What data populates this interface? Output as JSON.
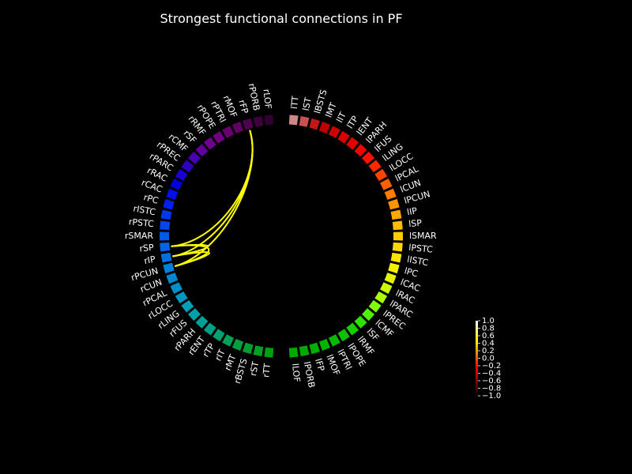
{
  "title": "Strongest functional connections in PF",
  "colors": {
    "background": "#000000",
    "edge": "#ffff00",
    "label": "#ffffff"
  },
  "nodes": [
    {
      "label": "lTT",
      "color": "#cc8888"
    },
    {
      "label": "lST",
      "color": "#c85050"
    },
    {
      "label": "lBSTS",
      "color": "#c01818"
    },
    {
      "label": "lMT",
      "color": "#c00000"
    },
    {
      "label": "lIT",
      "color": "#cc0000"
    },
    {
      "label": "lTP",
      "color": "#d80000"
    },
    {
      "label": "lENT",
      "color": "#e40000"
    },
    {
      "label": "lPARH",
      "color": "#f00000"
    },
    {
      "label": "lFUS",
      "color": "#ff1000"
    },
    {
      "label": "lLING",
      "color": "#ff2800"
    },
    {
      "label": "lLOCC",
      "color": "#ff4400"
    },
    {
      "label": "lPCAL",
      "color": "#ff6000"
    },
    {
      "label": "lCUN",
      "color": "#ff7c00"
    },
    {
      "label": "lPCUN",
      "color": "#ff9400"
    },
    {
      "label": "lIP",
      "color": "#ffa800"
    },
    {
      "label": "lSP",
      "color": "#ffbc00"
    },
    {
      "label": "lSMAR",
      "color": "#ffcc00"
    },
    {
      "label": "lPSTC",
      "color": "#ffd800"
    },
    {
      "label": "lISTC",
      "color": "#ffe400"
    },
    {
      "label": "lPC",
      "color": "#f4ee00"
    },
    {
      "label": "lCAC",
      "color": "#e4f400"
    },
    {
      "label": "lRAC",
      "color": "#ccf800"
    },
    {
      "label": "lPARC",
      "color": "#aaff00"
    },
    {
      "label": "lPREC",
      "color": "#80ff00"
    },
    {
      "label": "lCMF",
      "color": "#50f000"
    },
    {
      "label": "lSF",
      "color": "#30e000"
    },
    {
      "label": "lRMF",
      "color": "#18d000"
    },
    {
      "label": "lPOPE",
      "color": "#10c000"
    },
    {
      "label": "lPTRI",
      "color": "#08b800"
    },
    {
      "label": "lMOF",
      "color": "#04b000"
    },
    {
      "label": "lFP",
      "color": "#00b000"
    },
    {
      "label": "lPORB",
      "color": "#00a800"
    },
    {
      "label": "lLOF",
      "color": "#00a800"
    },
    {
      "label": "rTT",
      "color": "#00a010"
    },
    {
      "label": "rST",
      "color": "#00a020"
    },
    {
      "label": "rBSTS",
      "color": "#00a030"
    },
    {
      "label": "rMT",
      "color": "#00a040"
    },
    {
      "label": "rIT",
      "color": "#00a058"
    },
    {
      "label": "rTP",
      "color": "#00a070"
    },
    {
      "label": "rENT",
      "color": "#00a088"
    },
    {
      "label": "rPARH",
      "color": "#00a098"
    },
    {
      "label": "rFUS",
      "color": "#00a0a8"
    },
    {
      "label": "rLING",
      "color": "#00a0b8"
    },
    {
      "label": "rLOCC",
      "color": "#0098c0"
    },
    {
      "label": "rPCAL",
      "color": "#0090c8"
    },
    {
      "label": "rCUN",
      "color": "#0088d0"
    },
    {
      "label": "rPCUN",
      "color": "#0080d8"
    },
    {
      "label": "rIP",
      "color": "#0070e0"
    },
    {
      "label": "rSP",
      "color": "#0064e4"
    },
    {
      "label": "rSMAR",
      "color": "#0058e8"
    },
    {
      "label": "rPSTC",
      "color": "#0048ec"
    },
    {
      "label": "rISTC",
      "color": "#0038f0"
    },
    {
      "label": "rPC",
      "color": "#0020f0"
    },
    {
      "label": "rCAC",
      "color": "#0010e8"
    },
    {
      "label": "rRAC",
      "color": "#0000e0"
    },
    {
      "label": "rPARC",
      "color": "#1800d0"
    },
    {
      "label": "rPREC",
      "color": "#3000c0"
    },
    {
      "label": "rCMF",
      "color": "#4800b0"
    },
    {
      "label": "rSF",
      "color": "#6000a0"
    },
    {
      "label": "rRMF",
      "color": "#700090"
    },
    {
      "label": "rPOPE",
      "color": "#700080"
    },
    {
      "label": "rPTRI",
      "color": "#6a0070"
    },
    {
      "label": "rMOF",
      "color": "#600060"
    },
    {
      "label": "rFP",
      "color": "#500050"
    },
    {
      "label": "rPORB",
      "color": "#400040"
    },
    {
      "label": "rLOF",
      "color": "#300030"
    }
  ],
  "connections": [
    {
      "from": "rFP",
      "to": "rSP"
    },
    {
      "from": "rFP",
      "to": "rIP"
    },
    {
      "from": "rFP",
      "to": "rPCUN"
    },
    {
      "from": "rSP",
      "to": "rIP"
    },
    {
      "from": "rSP",
      "to": "rPCUN"
    },
    {
      "from": "rIP",
      "to": "rPCUN"
    }
  ],
  "colorbar": {
    "ticks": [
      "1.0",
      "0.8",
      "0.6",
      "0.4",
      "0.2",
      "0.0",
      "−0.2",
      "−0.4",
      "−0.6",
      "−0.8",
      "−1.0"
    ],
    "colormap": "hot",
    "range": [
      -1.0,
      1.0
    ]
  }
}
